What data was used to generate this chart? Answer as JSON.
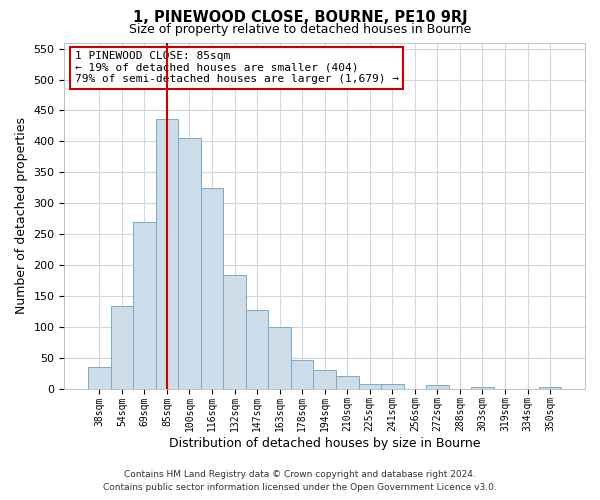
{
  "title": "1, PINEWOOD CLOSE, BOURNE, PE10 9RJ",
  "subtitle": "Size of property relative to detached houses in Bourne",
  "xlabel": "Distribution of detached houses by size in Bourne",
  "ylabel": "Number of detached properties",
  "bar_color": "#ccdce8",
  "bar_edge_color": "#7aaac8",
  "vline_x_index": 3,
  "vline_color": "#cc0000",
  "categories": [
    "38sqm",
    "54sqm",
    "69sqm",
    "85sqm",
    "100sqm",
    "116sqm",
    "132sqm",
    "147sqm",
    "163sqm",
    "178sqm",
    "194sqm",
    "210sqm",
    "225sqm",
    "241sqm",
    "256sqm",
    "272sqm",
    "288sqm",
    "303sqm",
    "319sqm",
    "334sqm",
    "350sqm"
  ],
  "values": [
    35,
    133,
    270,
    437,
    405,
    325,
    183,
    127,
    100,
    46,
    30,
    20,
    8,
    8,
    0,
    5,
    0,
    3,
    0,
    0,
    3
  ],
  "ylim": [
    0,
    560
  ],
  "yticks": [
    0,
    50,
    100,
    150,
    200,
    250,
    300,
    350,
    400,
    450,
    500,
    550
  ],
  "annotation_line1": "1 PINEWOOD CLOSE: 85sqm",
  "annotation_line2": "← 19% of detached houses are smaller (404)",
  "annotation_line3": "79% of semi-detached houses are larger (1,679) →",
  "annotation_box_edge": "#cc0000",
  "footer_line1": "Contains HM Land Registry data © Crown copyright and database right 2024.",
  "footer_line2": "Contains public sector information licensed under the Open Government Licence v3.0.",
  "background_color": "#ffffff",
  "grid_color": "#ccd8e4"
}
